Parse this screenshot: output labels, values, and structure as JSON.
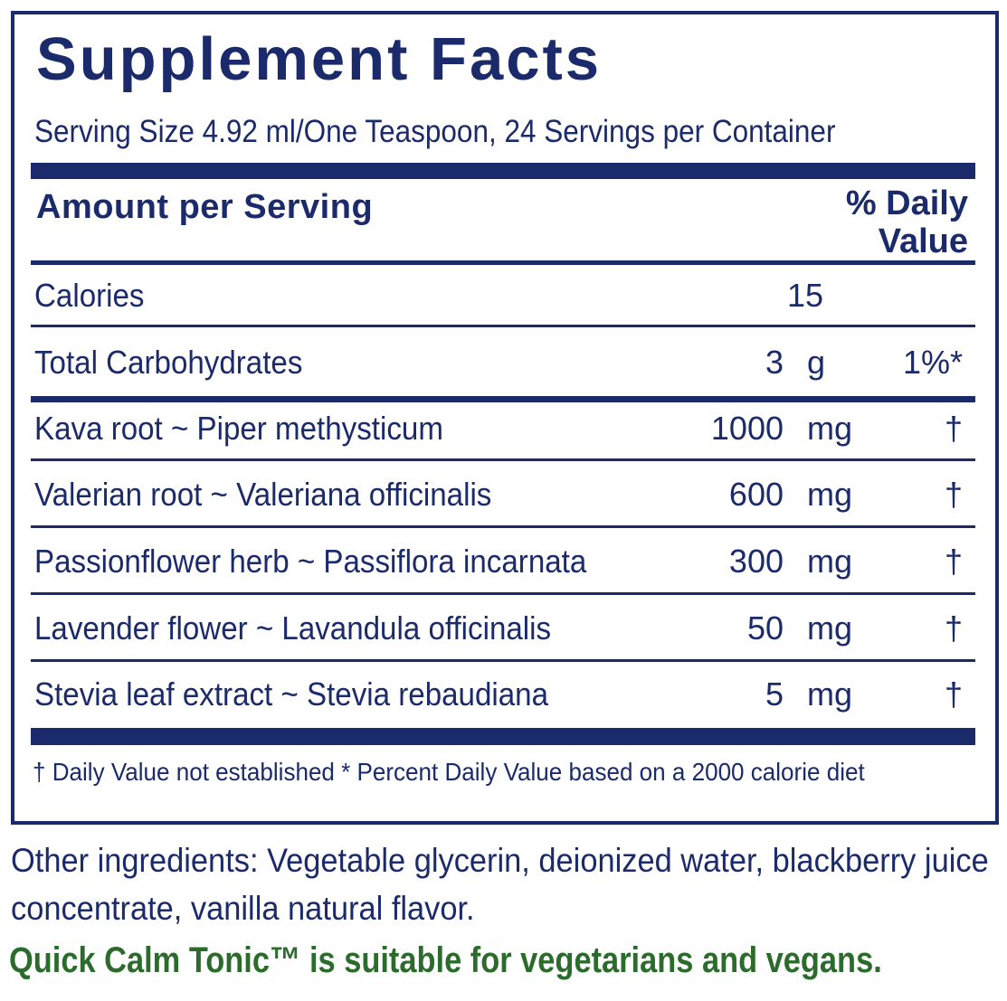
{
  "panel": {
    "title": "Supplement Facts",
    "serving": "Serving Size 4.92 ml/One Teaspoon, 24 Servings per Container",
    "header_left": "Amount per Serving",
    "header_right_line1": "% Daily",
    "header_right_line2": "Value",
    "calories": {
      "name": "Calories",
      "amount": "15"
    },
    "carbs": {
      "name": "Total Carbohydrates",
      "amount": "3",
      "unit": "g",
      "dv": "1%*"
    },
    "ingredients": [
      {
        "name": "Kava root ~ Piper methysticum",
        "amount": "1000",
        "unit": "mg",
        "dv": "†"
      },
      {
        "name": "Valerian root ~ Valeriana officinalis",
        "amount": "600",
        "unit": "mg",
        "dv": "†"
      },
      {
        "name": "Passionflower herb ~ Passiflora incarnata",
        "amount": "300",
        "unit": "mg",
        "dv": "†"
      },
      {
        "name": "Lavender flower ~ Lavandula officinalis",
        "amount": "50",
        "unit": "mg",
        "dv": "†"
      },
      {
        "name": "Stevia leaf extract ~ Stevia rebaudiana",
        "amount": "5",
        "unit": "mg",
        "dv": "†"
      }
    ],
    "footnote": "†  Daily Value not established   * Percent Daily Value based on a 2000 calorie diet"
  },
  "other_ingredients": "Other ingredients: Vegetable glycerin, deionized water, blackberry juice concentrate, vanilla natural flavor.",
  "vegan_note": "Quick Calm Tonic™ is suitable for vegetarians and vegans.",
  "colors": {
    "navy": "#1b2a6b",
    "green": "#2b6b2b"
  }
}
